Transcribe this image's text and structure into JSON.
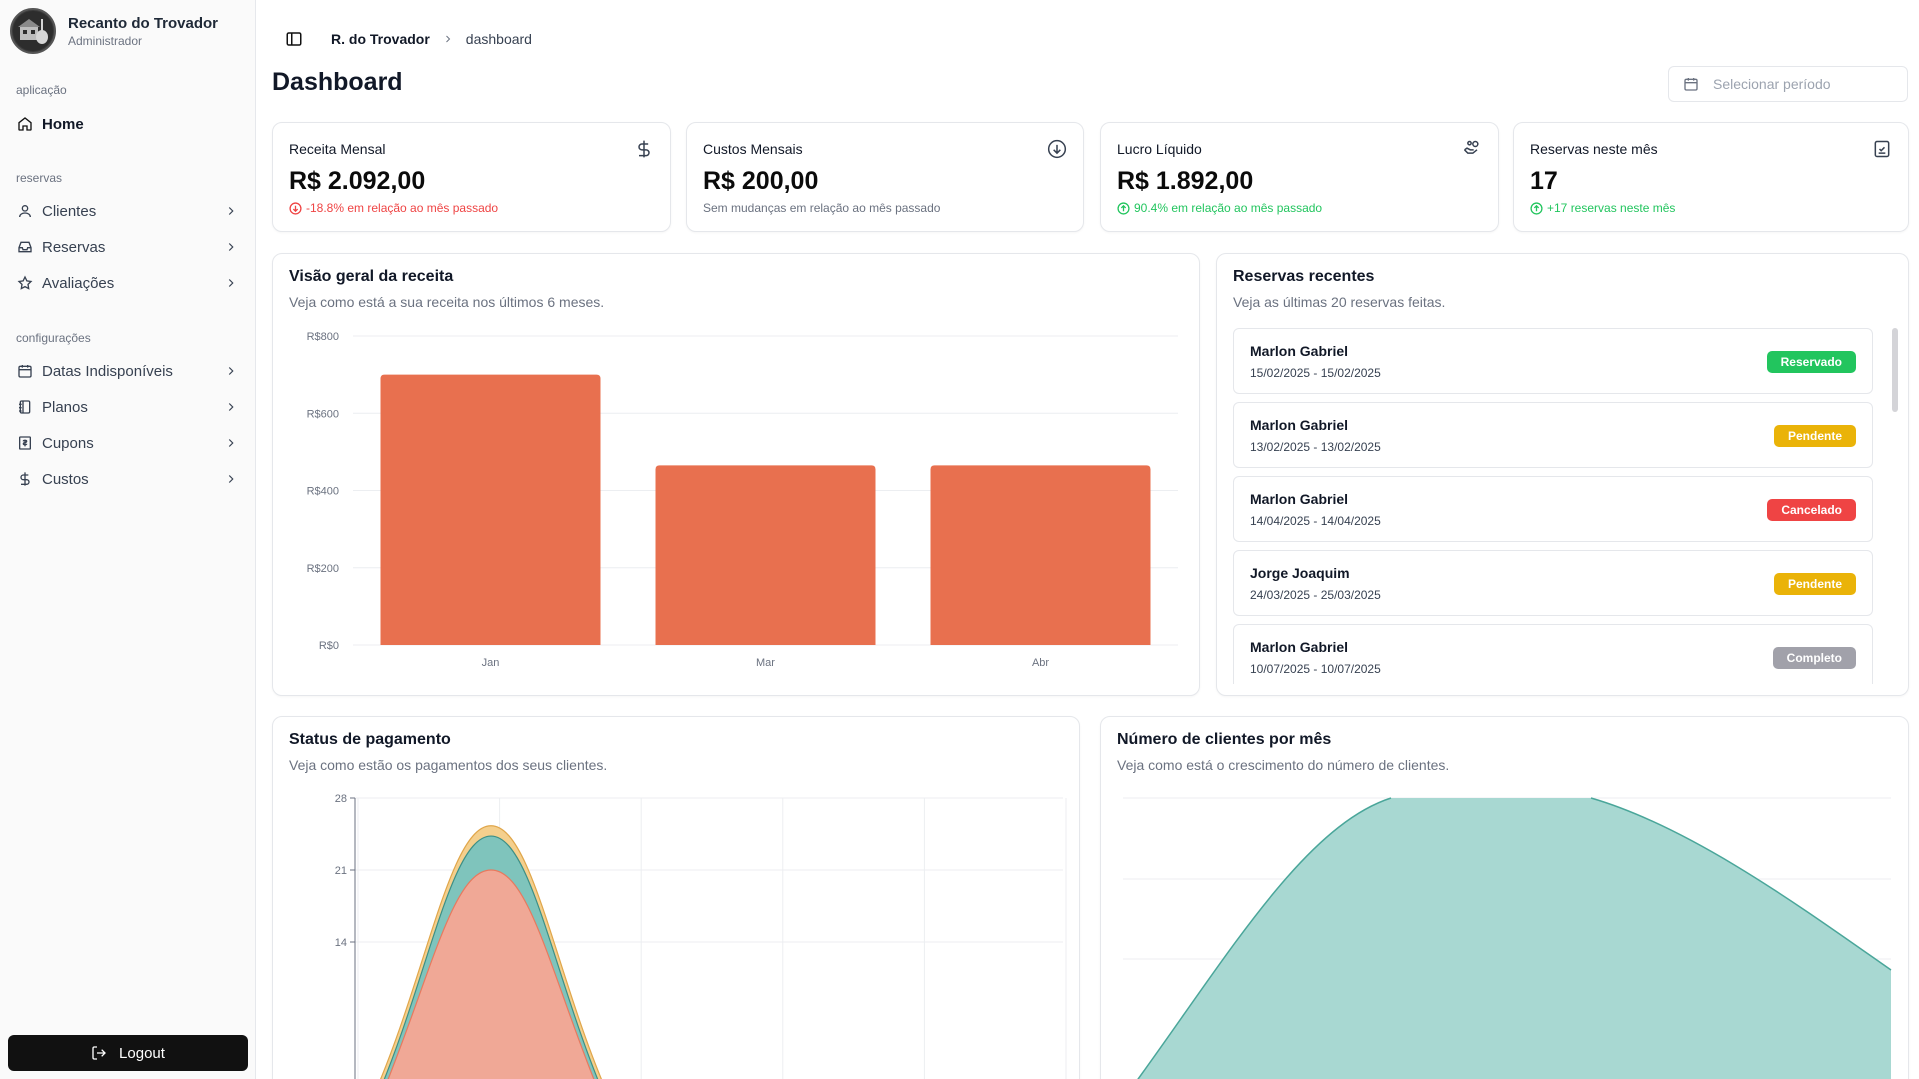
{
  "sidebar": {
    "brand_name": "Recanto do Trovador",
    "brand_role": "Administrador",
    "groups": {
      "app": "aplicação",
      "reservas": "reservas",
      "config": "configurações"
    },
    "items": [
      {
        "label": "Home",
        "icon": "home-icon",
        "active": true
      },
      {
        "label": "Clientes",
        "icon": "user-icon"
      },
      {
        "label": "Reservas",
        "icon": "inbox-icon"
      },
      {
        "label": "Avaliações",
        "icon": "star-icon"
      },
      {
        "label": "Datas Indisponíveis",
        "icon": "calendar-icon"
      },
      {
        "label": "Planos",
        "icon": "notebook-icon"
      },
      {
        "label": "Cupons",
        "icon": "receipt-icon"
      },
      {
        "label": "Custos",
        "icon": "dollar-icon"
      }
    ],
    "logout_label": "Logout"
  },
  "header": {
    "breadcrumb_root": "R. do Trovador",
    "breadcrumb_current": "dashboard",
    "title": "Dashboard",
    "period_placeholder": "Selecionar período"
  },
  "stats": [
    {
      "label": "Receita Mensal",
      "value": "R$ 2.092,00",
      "sub": "-18.8% em relação ao mês passado",
      "trend": "down",
      "icon": "dollar-icon"
    },
    {
      "label": "Custos Mensais",
      "value": "R$ 200,00",
      "sub": "Sem mudanças em relação ao mês passado",
      "trend": "none",
      "icon": "arrow-down-circle-icon"
    },
    {
      "label": "Lucro Líquido",
      "value": "R$ 1.892,00",
      "sub": "90.4% em relação ao mês passado",
      "trend": "up",
      "icon": "hand-coins-icon"
    },
    {
      "label": "Reservas neste mês",
      "value": "17",
      "sub": "+17 reservas neste mês",
      "trend": "up",
      "icon": "calendar-check-icon"
    }
  ],
  "revenue": {
    "title": "Visão geral da receita",
    "desc": "Veja como está a sua receita nos últimos 6 meses."
  },
  "recent": {
    "title": "Reservas recentes",
    "desc": "Veja as últimas 20 reservas feitas.",
    "items": [
      {
        "name": "Marlon Gabriel",
        "dates": "15/02/2025 - 15/02/2025",
        "status": "Reservado",
        "color": "#22c55e"
      },
      {
        "name": "Marlon Gabriel",
        "dates": "13/02/2025 - 13/02/2025",
        "status": "Pendente",
        "color": "#eab308"
      },
      {
        "name": "Marlon Gabriel",
        "dates": "14/04/2025 - 14/04/2025",
        "status": "Cancelado",
        "color": "#ef4444"
      },
      {
        "name": "Jorge Joaquim",
        "dates": "24/03/2025 - 25/03/2025",
        "status": "Pendente",
        "color": "#eab308"
      },
      {
        "name": "Marlon Gabriel",
        "dates": "10/07/2025 - 10/07/2025",
        "status": "Completo",
        "color": "#a1a1aa"
      }
    ]
  },
  "payment": {
    "title": "Status de pagamento",
    "desc": "Veja como estão os pagamentos dos seus clientes."
  },
  "clients": {
    "title": "Número de clientes por mês",
    "desc": "Veja como está o crescimento do número de clientes."
  },
  "chart_data": [
    {
      "type": "bar",
      "categories": [
        "Jan",
        "Mar",
        "Abr"
      ],
      "values": [
        700,
        465,
        465
      ],
      "ylim": [
        0,
        800
      ],
      "yticks": [
        "R$0",
        "R$200",
        "R$400",
        "R$600",
        "R$800"
      ],
      "color": "#e8704f",
      "grid": true
    },
    {
      "type": "area",
      "stacked": true,
      "ylim": [
        0,
        28
      ],
      "yticks": [
        "14",
        "21",
        "28"
      ],
      "series_colors": [
        "#f0a896",
        "#7fc4bc",
        "#f4cf8d"
      ],
      "peak_values": [
        21,
        24.3,
        25.3
      ],
      "grid": true
    },
    {
      "type": "area",
      "color": "#a8d8d2",
      "stroke": "#4aa69a",
      "grid": true
    }
  ]
}
